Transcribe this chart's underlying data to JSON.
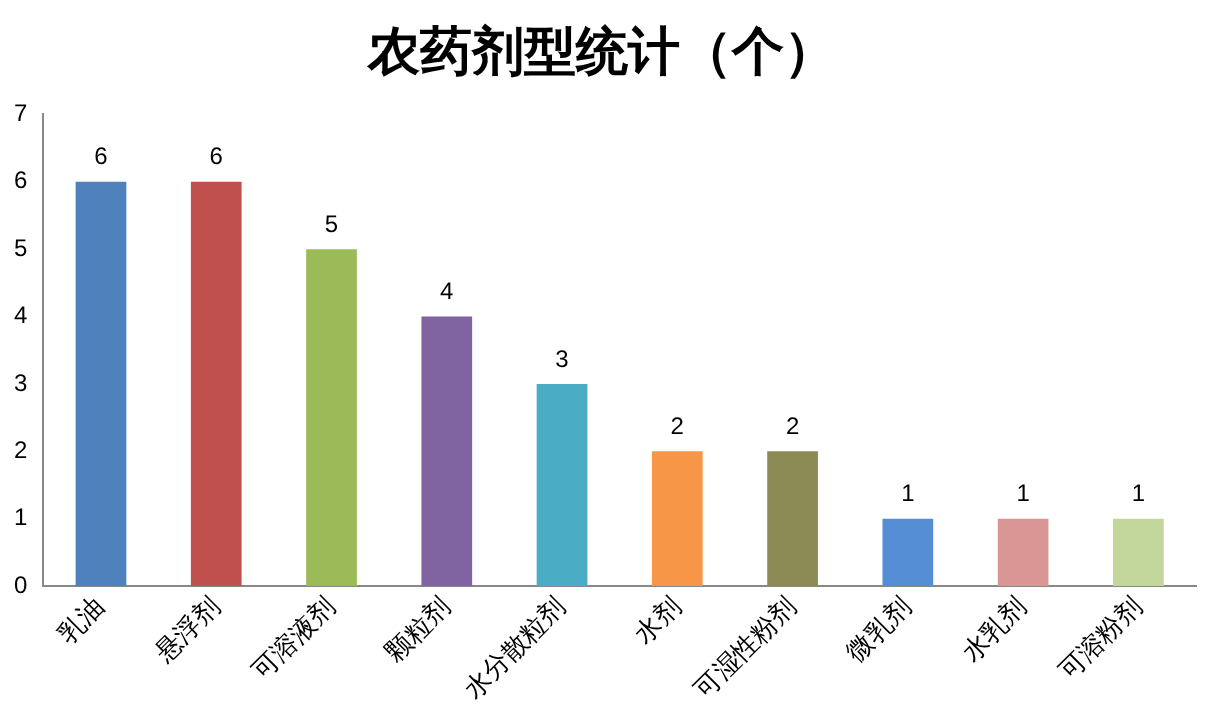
{
  "chart_data": {
    "type": "bar",
    "title": "农药剂型统计（个）",
    "categories": [
      "乳油",
      "悬浮剂",
      "可溶液剂",
      "颗粒剂",
      "水分散粒剂",
      "水剂",
      "可湿性粉剂",
      "微乳剂",
      "水乳剂",
      "可溶粉剂"
    ],
    "values": [
      6,
      6,
      5,
      4,
      3,
      2,
      2,
      1,
      1,
      1
    ],
    "colors": [
      "#4f81bd",
      "#c0504d",
      "#9bbb59",
      "#8064a2",
      "#4bacc6",
      "#f79646",
      "#8c8a55",
      "#558ed5",
      "#d99694",
      "#c3d69b"
    ],
    "ylim": [
      0,
      7
    ],
    "yticks": [
      0,
      1,
      2,
      3,
      4,
      5,
      6,
      7
    ],
    "grid": false,
    "legend": false,
    "data_labels": true
  }
}
